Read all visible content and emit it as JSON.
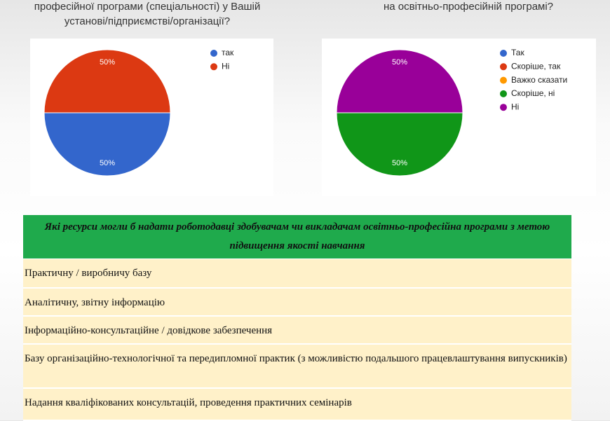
{
  "chart_data": [
    {
      "type": "pie",
      "title": [
        "професійної програми (спеціальності) у Вашій",
        "установі/підприємстві/організації?"
      ],
      "categories": [
        "так",
        "Ні"
      ],
      "values": [
        50,
        50
      ],
      "value_labels": [
        "50%",
        "50%"
      ],
      "colors": [
        "#3366cc",
        "#dc3912"
      ]
    },
    {
      "type": "pie",
      "title": [
        "на освітньо-професійній програмі?"
      ],
      "categories": [
        "Так",
        "Скоріше, так",
        "Важко сказати",
        "Скоріше, ні",
        "Ні"
      ],
      "values": [
        0,
        0,
        0,
        50,
        50
      ],
      "value_labels": [
        null,
        null,
        null,
        "50%",
        "50%"
      ],
      "colors": [
        "#3366cc",
        "#dc3912",
        "#ff9900",
        "#109618",
        "#990099"
      ]
    }
  ],
  "table": {
    "header": "Які ресурси могли б надати роботодавці здобувачам чи викладачам освітньо-професійна програми з метою підвищення якості навчання",
    "rows": [
      "Практичну / виробничу базу",
      "Аналітичну, звітну інформацію",
      "Інформаційно-консультаційне / довідкове забезпечення",
      "Базу організаційно-технологічної та передипломної практик (з можливістю подальшого працевлаштування випускників)",
      "Надання кваліфікованих консультацій, проведення практичних семінарів"
    ]
  }
}
